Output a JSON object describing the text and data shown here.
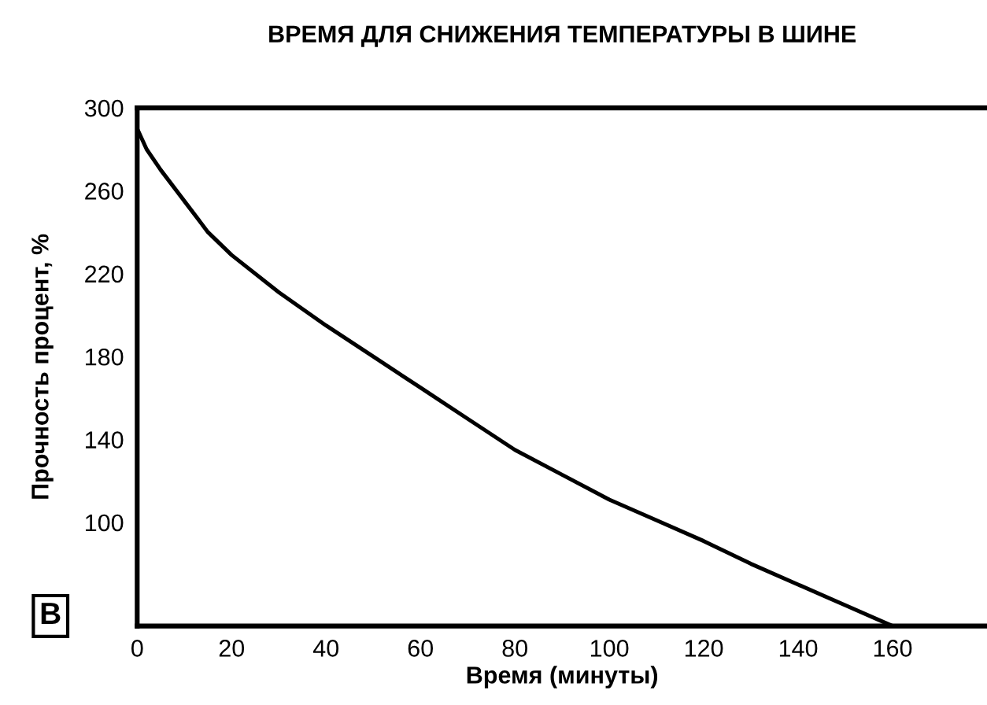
{
  "chart_data": {
    "type": "line",
    "title": "ВРЕМЯ ДЛЯ СНИЖЕНИЯ ТЕМПЕРАТУРЫ В ШИНЕ",
    "xlabel": "Время (минуты)",
    "ylabel": "Прочность процент, %",
    "annotations": [
      "В"
    ],
    "x": [
      0,
      2,
      5,
      10,
      15,
      20,
      30,
      40,
      50,
      60,
      70,
      80,
      90,
      100,
      110,
      120,
      130,
      140,
      150,
      160
    ],
    "series": [
      {
        "color": "#000000",
        "values": [
          290,
          280,
          270,
          255,
          240,
          229,
          211,
          195,
          180,
          165,
          150,
          135,
          123,
          111,
          101,
          91,
          80,
          70,
          60,
          50
        ]
      }
    ],
    "xlim": [
      0,
      180
    ],
    "ylim": [
      50,
      300
    ],
    "xticks": [
      0,
      20,
      40,
      60,
      80,
      100,
      120,
      140,
      160
    ],
    "yticks": [
      100,
      140,
      180,
      220,
      260,
      300
    ],
    "grid": false,
    "legend": false,
    "marker": "none",
    "line_style": "solid"
  }
}
